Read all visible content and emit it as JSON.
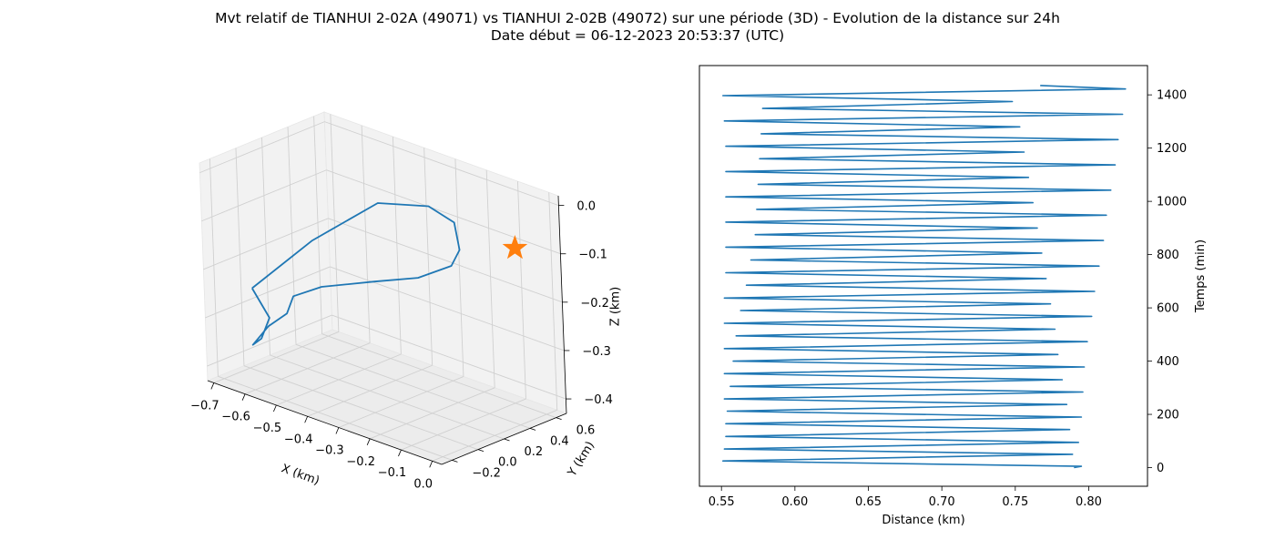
{
  "figure": {
    "title_line1": "Mvt relatif de TIANHUI 2-02A (49071) vs TIANHUI 2-02B (49072) sur une période (3D) - Evolution de la distance sur 24h",
    "title_line2": "Date début = 06-12-2023 20:53:37 (UTC)"
  },
  "colors": {
    "line": "#1f77b4",
    "marker": "#ff7f0e",
    "pane": "#f2f2f2",
    "grid": "#d0d0d0"
  },
  "chart_data": [
    {
      "type": "line",
      "projection": "3d",
      "xlabel": "X (km)",
      "ylabel": "Y (km)",
      "zlabel": "Z (km)",
      "xlim": [
        -0.72,
        0.03
      ],
      "ylim": [
        -0.28,
        0.68
      ],
      "zlim": [
        -0.43,
        0.02
      ],
      "xticks": [
        -0.7,
        -0.6,
        -0.5,
        -0.4,
        -0.3,
        -0.2,
        -0.1,
        0.0
      ],
      "xtick_labels": [
        "−0.7",
        "−0.6",
        "−0.5",
        "−0.4",
        "−0.3",
        "−0.2",
        "−0.1",
        "0.0"
      ],
      "yticks": [
        -0.2,
        0.0,
        0.2,
        0.4,
        0.6
      ],
      "ytick_labels": [
        "−0.2",
        "0.0",
        "0.2",
        "0.4",
        "0.6"
      ],
      "zticks": [
        0.0,
        -0.1,
        -0.2,
        -0.3,
        -0.4
      ],
      "ztick_labels": [
        "0.0",
        "−0.1",
        "−0.2",
        "−0.3",
        "−0.4"
      ],
      "grid": true,
      "series": [
        {
          "x": [
            -0.62,
            -0.47,
            -0.33,
            -0.23,
            -0.2,
            -0.22,
            -0.27,
            -0.38,
            -0.5,
            -0.63,
            -0.68,
            -0.66,
            -0.7,
            -0.71,
            -0.66,
            -0.61,
            -0.62
          ],
          "y": [
            -0.15,
            -0.03,
            0.15,
            0.3,
            0.42,
            0.5,
            0.55,
            0.55,
            0.5,
            0.4,
            0.3,
            0.2,
            0.15,
            0.05,
            0.0,
            -0.05,
            -0.15
          ],
          "z": [
            -0.23,
            -0.11,
            -0.02,
            -0.02,
            -0.06,
            -0.13,
            -0.18,
            -0.23,
            -0.26,
            -0.29,
            -0.31,
            -0.33,
            -0.36,
            -0.39,
            -0.36,
            -0.3,
            -0.23
          ]
        }
      ],
      "markers": [
        {
          "x": -0.01,
          "y": 0.43,
          "z": -0.07,
          "symbol": "star"
        }
      ]
    },
    {
      "type": "line",
      "xlabel": "Distance (km)",
      "ylabel": "Temps (min)",
      "xlim": [
        0.535,
        0.84
      ],
      "ylim": [
        -70,
        1510
      ],
      "xticks": [
        0.55,
        0.6,
        0.65,
        0.7,
        0.75,
        0.8
      ],
      "xtick_labels": [
        "0.55",
        "0.60",
        "0.65",
        "0.70",
        "0.75",
        "0.80"
      ],
      "yticks": [
        0,
        200,
        400,
        600,
        800,
        1000,
        1200,
        1400
      ],
      "ytick_labels": [
        "0",
        "200",
        "400",
        "600",
        "800",
        "1000",
        "1200",
        "1400"
      ],
      "y_axis_side": "right",
      "grid": false,
      "series": [
        {
          "x": [
            0.79,
            0.795,
            0.551,
            0.789,
            0.552,
            0.793,
            0.553,
            0.787,
            0.553,
            0.795,
            0.554,
            0.785,
            0.552,
            0.796,
            0.556,
            0.782,
            0.552,
            0.797,
            0.558,
            0.779,
            0.552,
            0.799,
            0.56,
            0.777,
            0.552,
            0.802,
            0.563,
            0.774,
            0.552,
            0.804,
            0.567,
            0.771,
            0.553,
            0.807,
            0.57,
            0.768,
            0.553,
            0.81,
            0.573,
            0.765,
            0.553,
            0.812,
            0.574,
            0.762,
            0.553,
            0.815,
            0.575,
            0.759,
            0.553,
            0.818,
            0.576,
            0.756,
            0.553,
            0.82,
            0.577,
            0.753,
            0.552,
            0.823,
            0.578,
            0.748,
            0.551,
            0.825,
            0.767
          ],
          "y": [
            0,
            5,
            25,
            50,
            70,
            95,
            117,
            143,
            165,
            190,
            212,
            237,
            258,
            284,
            305,
            330,
            353,
            378,
            400,
            425,
            447,
            473,
            495,
            520,
            542,
            568,
            590,
            615,
            637,
            662,
            685,
            710,
            732,
            757,
            780,
            806,
            828,
            853,
            875,
            900,
            922,
            948,
            970,
            995,
            1017,
            1042,
            1064,
            1090,
            1112,
            1137,
            1160,
            1185,
            1207,
            1232,
            1254,
            1280,
            1302,
            1327,
            1349,
            1375,
            1397,
            1422,
            1435
          ]
        }
      ]
    }
  ]
}
